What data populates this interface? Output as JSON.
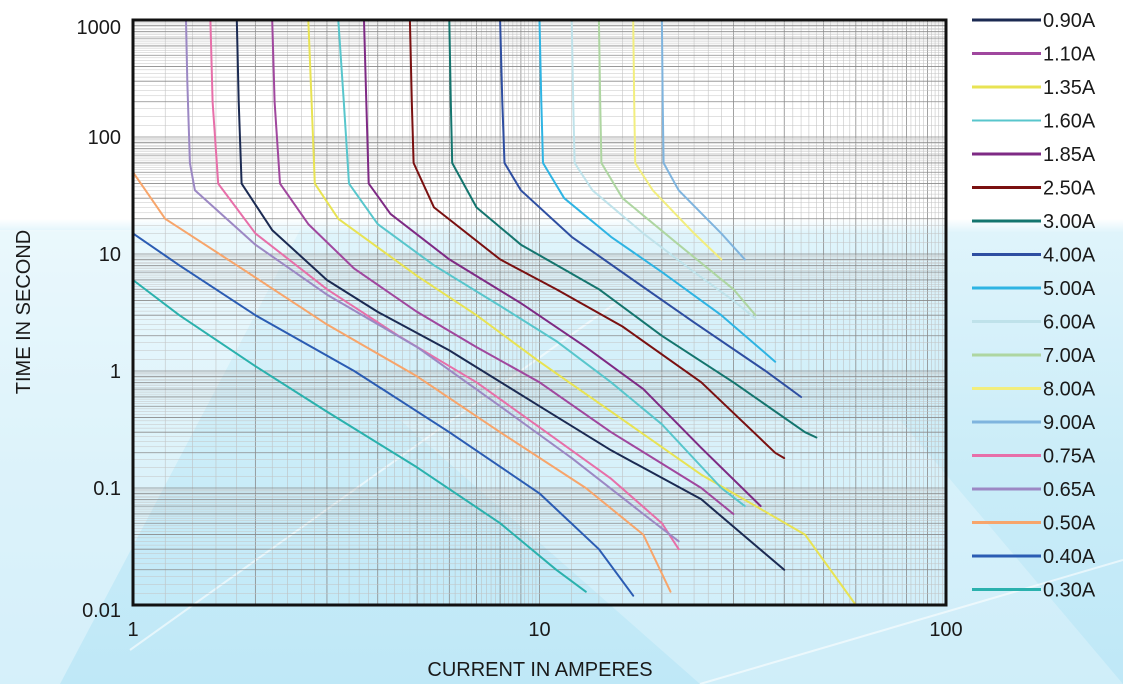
{
  "chart_data": {
    "type": "line",
    "title": "",
    "xlabel": "CURRENT IN AMPERES",
    "ylabel": "TIME IN SECOND",
    "x_scale": "log",
    "y_scale": "log",
    "xlim": [
      1,
      100
    ],
    "ylim": [
      0.01,
      1000
    ],
    "x_ticks": [
      "1",
      "10",
      "100"
    ],
    "y_ticks": [
      "0.01",
      "0.1",
      "1",
      "10",
      "100",
      "1000"
    ],
    "grid": true,
    "legend_placement": "right",
    "series": [
      {
        "name": "0.90A",
        "color": "#1b2a52",
        "width": 3,
        "points": [
          [
            1.8,
            1000
          ],
          [
            1.82,
            200
          ],
          [
            1.85,
            40
          ],
          [
            2.2,
            16
          ],
          [
            3.0,
            6
          ],
          [
            4.0,
            3.2
          ],
          [
            6.0,
            1.5
          ],
          [
            10,
            0.5
          ],
          [
            15,
            0.21
          ],
          [
            25,
            0.08
          ],
          [
            40,
            0.02
          ]
        ]
      },
      {
        "name": "1.10A",
        "color": "#a0479e",
        "width": 3,
        "points": [
          [
            2.2,
            1000
          ],
          [
            2.23,
            200
          ],
          [
            2.3,
            40
          ],
          [
            2.7,
            18
          ],
          [
            3.5,
            7.5
          ],
          [
            5.0,
            3.2
          ],
          [
            7.0,
            1.6
          ],
          [
            10,
            0.8
          ],
          [
            15,
            0.3
          ],
          [
            25,
            0.1
          ],
          [
            30,
            0.06
          ]
        ]
      },
      {
        "name": "1.35A",
        "color": "#e8e353",
        "width": 3,
        "points": [
          [
            2.7,
            1000
          ],
          [
            2.75,
            200
          ],
          [
            2.8,
            40
          ],
          [
            3.2,
            20
          ],
          [
            5.0,
            6.5
          ],
          [
            7.0,
            3.0
          ],
          [
            10,
            1.2
          ],
          [
            15,
            0.45
          ],
          [
            25,
            0.13
          ],
          [
            45,
            0.04
          ],
          [
            60,
            0.01
          ]
        ]
      },
      {
        "name": "1.60A",
        "color": "#58c6cc",
        "width": 2,
        "points": [
          [
            3.2,
            1000
          ],
          [
            3.3,
            200
          ],
          [
            3.4,
            40
          ],
          [
            4.0,
            18
          ],
          [
            5.5,
            8
          ],
          [
            8.0,
            3.6
          ],
          [
            11,
            1.8
          ],
          [
            15,
            0.8
          ],
          [
            20,
            0.35
          ],
          [
            28,
            0.1
          ],
          [
            32,
            0.07
          ]
        ]
      },
      {
        "name": "1.85A",
        "color": "#7e2a84",
        "width": 3,
        "points": [
          [
            3.7,
            1000
          ],
          [
            3.75,
            200
          ],
          [
            3.8,
            40
          ],
          [
            4.3,
            22
          ],
          [
            6.0,
            9
          ],
          [
            9.0,
            3.8
          ],
          [
            13,
            1.6
          ],
          [
            18,
            0.7
          ],
          [
            25,
            0.22
          ],
          [
            35,
            0.07
          ]
        ]
      },
      {
        "name": "2.50A",
        "color": "#7a1010",
        "width": 3,
        "points": [
          [
            4.8,
            1000
          ],
          [
            4.85,
            200
          ],
          [
            4.9,
            60
          ],
          [
            5.5,
            25
          ],
          [
            8.0,
            9
          ],
          [
            11,
            5
          ],
          [
            16,
            2.4
          ],
          [
            25,
            0.8
          ],
          [
            38,
            0.2
          ],
          [
            40,
            0.18
          ]
        ]
      },
      {
        "name": "3.00A",
        "color": "#14756e",
        "width": 3,
        "points": [
          [
            6.0,
            1000
          ],
          [
            6.05,
            200
          ],
          [
            6.1,
            60
          ],
          [
            7.0,
            25
          ],
          [
            9.0,
            12
          ],
          [
            14,
            5
          ],
          [
            20,
            2
          ],
          [
            30,
            0.8
          ],
          [
            45,
            0.3
          ],
          [
            48,
            0.27
          ]
        ]
      },
      {
        "name": "4.00A",
        "color": "#2e4ea1",
        "width": 3,
        "points": [
          [
            8.0,
            1000
          ],
          [
            8.1,
            200
          ],
          [
            8.2,
            60
          ],
          [
            9.0,
            35
          ],
          [
            12,
            14
          ],
          [
            17,
            6
          ],
          [
            24,
            2.6
          ],
          [
            36,
            1
          ],
          [
            44,
            0.6
          ]
        ]
      },
      {
        "name": "5.00A",
        "color": "#2eb4e3",
        "width": 3,
        "points": [
          [
            10,
            1000
          ],
          [
            10.1,
            200
          ],
          [
            10.2,
            60
          ],
          [
            11.5,
            30
          ],
          [
            15,
            14
          ],
          [
            20,
            7
          ],
          [
            28,
            3
          ],
          [
            38,
            1.2
          ]
        ]
      },
      {
        "name": "6.00A",
        "color": "#bfe2ea",
        "width": 3,
        "points": [
          [
            12,
            1000
          ],
          [
            12.1,
            200
          ],
          [
            12.2,
            60
          ],
          [
            13.5,
            35
          ],
          [
            18,
            15
          ],
          [
            24,
            7
          ],
          [
            30,
            4
          ],
          [
            34,
            2.8
          ]
        ]
      },
      {
        "name": "7.00A",
        "color": "#aed6a1",
        "width": 3,
        "points": [
          [
            14,
            1000
          ],
          [
            14.1,
            200
          ],
          [
            14.2,
            60
          ],
          [
            16,
            30
          ],
          [
            22,
            12
          ],
          [
            30,
            5
          ],
          [
            34,
            3
          ]
        ]
      },
      {
        "name": "8.00A",
        "color": "#f2ee7e",
        "width": 3,
        "points": [
          [
            17,
            1000
          ],
          [
            17.1,
            200
          ],
          [
            17.2,
            60
          ],
          [
            19,
            35
          ],
          [
            24,
            15
          ],
          [
            28,
            9
          ]
        ]
      },
      {
        "name": "9.00A",
        "color": "#7fb4de",
        "width": 3,
        "points": [
          [
            20,
            1000
          ],
          [
            20.1,
            200
          ],
          [
            20.2,
            60
          ],
          [
            22,
            35
          ],
          [
            28,
            15
          ],
          [
            32,
            9
          ]
        ]
      },
      {
        "name": "0.75A",
        "color": "#e76fa9",
        "width": 3,
        "points": [
          [
            1.55,
            1000
          ],
          [
            1.57,
            200
          ],
          [
            1.62,
            40
          ],
          [
            2.0,
            15
          ],
          [
            3.0,
            5
          ],
          [
            4.5,
            2
          ],
          [
            7.0,
            0.8
          ],
          [
            10,
            0.33
          ],
          [
            15,
            0.12
          ],
          [
            20,
            0.05
          ],
          [
            22,
            0.03
          ]
        ]
      },
      {
        "name": "0.65A",
        "color": "#9c88c4",
        "width": 3,
        "points": [
          [
            1.35,
            1000
          ],
          [
            1.36,
            300
          ],
          [
            1.38,
            60
          ],
          [
            1.42,
            35
          ],
          [
            2.0,
            12
          ],
          [
            3.0,
            4.5
          ],
          [
            5.0,
            1.6
          ],
          [
            8.0,
            0.5
          ],
          [
            12,
            0.18
          ],
          [
            18,
            0.06
          ],
          [
            22,
            0.035
          ]
        ]
      },
      {
        "name": "0.50A",
        "color": "#f7a56b",
        "width": 3,
        "points": [
          [
            1.0,
            50
          ],
          [
            1.2,
            20
          ],
          [
            1.8,
            8
          ],
          [
            3.0,
            2.5
          ],
          [
            5.0,
            0.9
          ],
          [
            8.0,
            0.3
          ],
          [
            13,
            0.1
          ],
          [
            18,
            0.04
          ],
          [
            21,
            0.013
          ]
        ]
      },
      {
        "name": "0.40A",
        "color": "#2b5cb3",
        "width": 3,
        "points": [
          [
            1.0,
            15
          ],
          [
            1.3,
            8
          ],
          [
            2.0,
            3
          ],
          [
            3.5,
            1
          ],
          [
            6.0,
            0.3
          ],
          [
            10,
            0.09
          ],
          [
            14,
            0.03
          ],
          [
            17,
            0.012
          ]
        ]
      },
      {
        "name": "0.30A",
        "color": "#2ab1ad",
        "width": 3,
        "points": [
          [
            1.0,
            6
          ],
          [
            1.3,
            3
          ],
          [
            2.0,
            1.1
          ],
          [
            3.0,
            0.45
          ],
          [
            5.0,
            0.15
          ],
          [
            8.0,
            0.05
          ],
          [
            11,
            0.02
          ],
          [
            13,
            0.013
          ]
        ]
      }
    ]
  }
}
